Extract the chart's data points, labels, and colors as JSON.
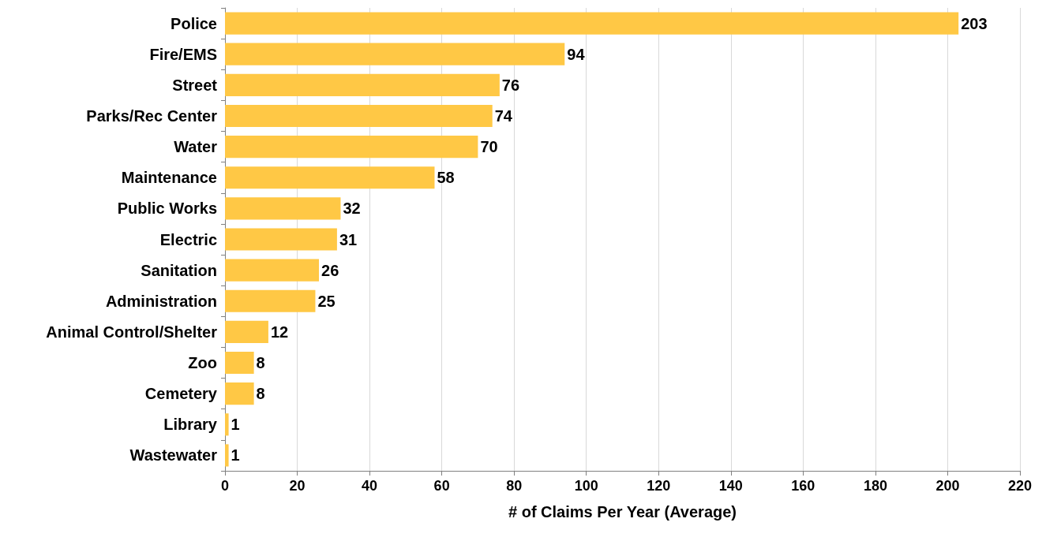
{
  "chart_data": {
    "type": "bar",
    "orientation": "horizontal",
    "xlabel": "# of Claims Per Year (Average)",
    "categories": [
      "Police",
      "Fire/EMS",
      "Street",
      "Parks/Rec Center",
      "Water",
      "Maintenance",
      "Public Works",
      "Electric",
      "Sanitation",
      "Administration",
      "Animal Control/Shelter",
      "Zoo",
      "Cemetery",
      "Library",
      "Wastewater"
    ],
    "values": [
      203,
      94,
      76,
      74,
      70,
      58,
      32,
      31,
      26,
      25,
      12,
      8,
      8,
      1,
      1
    ],
    "color": "#ffc845",
    "xlim": [
      0,
      220
    ],
    "xticks": [
      0,
      20,
      40,
      60,
      80,
      100,
      120,
      140,
      160,
      180,
      200,
      220
    ],
    "grid": "x",
    "data_labels": true
  }
}
